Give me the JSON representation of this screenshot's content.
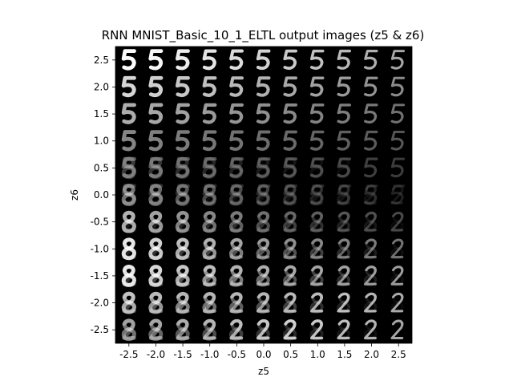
{
  "chart_data": {
    "type": "heatmap",
    "title": "RNN MNIST_Basic_10_1_ELTL output images (z5 & z6)",
    "xlabel": "z5",
    "ylabel": "z6",
    "x_ticks": [
      "-2.5",
      "-2.0",
      "-1.5",
      "-1.0",
      "-0.5",
      "0.0",
      "0.5",
      "1.0",
      "1.5",
      "2.0",
      "2.5"
    ],
    "y_ticks": [
      "2.5",
      "2.0",
      "1.5",
      "1.0",
      "0.5",
      "0.0",
      "-0.5",
      "-1.0",
      "-1.5",
      "-2.0",
      "-2.5"
    ],
    "x_values": [
      -2.5,
      -2.0,
      -1.5,
      -1.0,
      -0.5,
      0.0,
      0.5,
      1.0,
      1.5,
      2.0,
      2.5
    ],
    "y_values": [
      2.5,
      2.0,
      1.5,
      1.0,
      0.5,
      0.0,
      -0.5,
      -1.0,
      -1.5,
      -2.0,
      -2.5
    ],
    "xlim": [
      -2.75,
      2.75
    ],
    "ylim": [
      -2.75,
      2.75
    ],
    "grid": false,
    "cell_content": "decoded MNIST digit images morphing 5 (top) to 8 (lower-left) to 2 (lower-right)",
    "background_color": "#000000",
    "digit_color": "#ffffff"
  }
}
